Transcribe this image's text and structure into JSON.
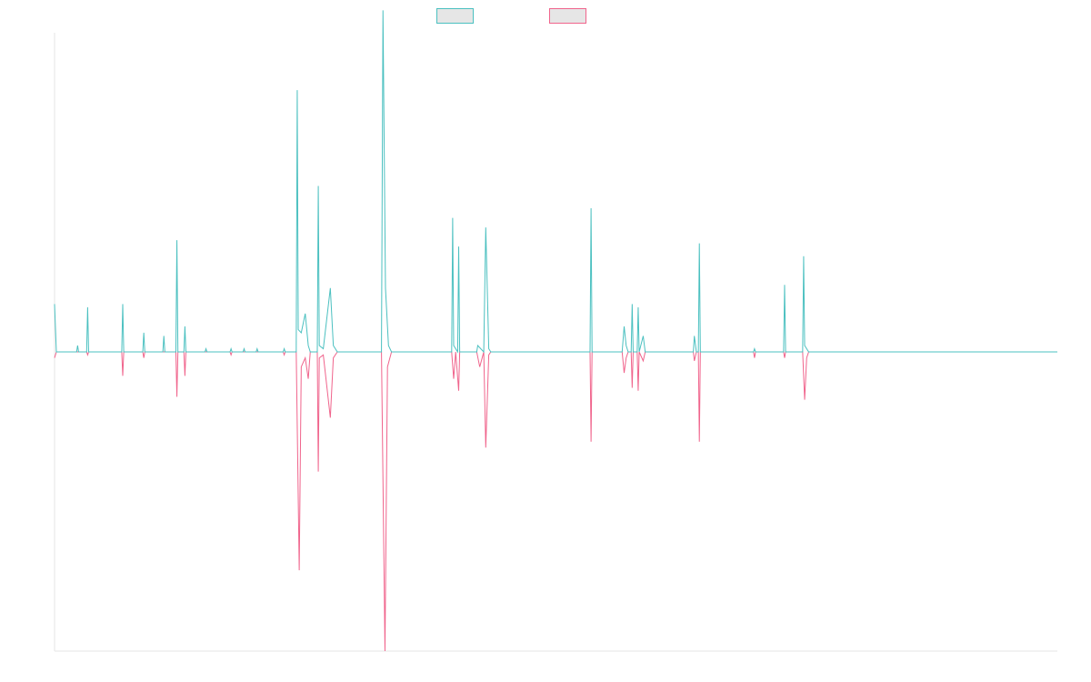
{
  "chart_data": {
    "type": "line",
    "title": "",
    "xlabel": "",
    "ylabel": "",
    "xlim": [
      0,
      100
    ],
    "ylim": [
      -1,
      1
    ],
    "legend": "top-center",
    "grid": false,
    "baseline": 0,
    "series": [
      {
        "name": "",
        "color": "#4bc0c0",
        "legend_fill": "#e6e6e6",
        "direction": "up",
        "points": [
          [
            0,
            0.15
          ],
          [
            0.18,
            0
          ],
          [
            2.2,
            0
          ],
          [
            2.3,
            0.02
          ],
          [
            2.4,
            0
          ],
          [
            3.2,
            0
          ],
          [
            3.3,
            0.14
          ],
          [
            3.4,
            0
          ],
          [
            6.7,
            0
          ],
          [
            6.8,
            0.15
          ],
          [
            6.9,
            0
          ],
          [
            8.8,
            0
          ],
          [
            8.9,
            0.06
          ],
          [
            9.0,
            0
          ],
          [
            10.8,
            0
          ],
          [
            10.9,
            0.05
          ],
          [
            11.0,
            0
          ],
          [
            12.1,
            0
          ],
          [
            12.2,
            0.35
          ],
          [
            12.3,
            0
          ],
          [
            12.9,
            0
          ],
          [
            13.0,
            0.08
          ],
          [
            13.1,
            0
          ],
          [
            15.0,
            0
          ],
          [
            15.1,
            0.01
          ],
          [
            15.2,
            0
          ],
          [
            17.5,
            0
          ],
          [
            17.6,
            0.01
          ],
          [
            17.7,
            0
          ],
          [
            18.8,
            0
          ],
          [
            18.9,
            0.01
          ],
          [
            19.0,
            0
          ],
          [
            20.1,
            0
          ],
          [
            20.2,
            0.01
          ],
          [
            20.3,
            0
          ],
          [
            22.8,
            0
          ],
          [
            22.9,
            0.01
          ],
          [
            23.0,
            0
          ],
          [
            24.1,
            0
          ],
          [
            24.2,
            0.82
          ],
          [
            24.3,
            0.07
          ],
          [
            24.6,
            0.06
          ],
          [
            25.0,
            0.12
          ],
          [
            25.3,
            0.02
          ],
          [
            25.5,
            0
          ],
          [
            26.2,
            0
          ],
          [
            26.3,
            0.52
          ],
          [
            26.4,
            0.02
          ],
          [
            26.8,
            0.01
          ],
          [
            27.5,
            0.2
          ],
          [
            27.8,
            0.02
          ],
          [
            28.2,
            0
          ],
          [
            32.6,
            0
          ],
          [
            32.75,
            1.07
          ],
          [
            33.0,
            0.2
          ],
          [
            33.3,
            0.02
          ],
          [
            33.6,
            0
          ],
          [
            39.6,
            0
          ],
          [
            39.7,
            0.42
          ],
          [
            39.8,
            0.02
          ],
          [
            40.2,
            0
          ],
          [
            40.3,
            0.33
          ],
          [
            40.4,
            0
          ],
          [
            42.1,
            0
          ],
          [
            42.2,
            0.02
          ],
          [
            42.8,
            0
          ],
          [
            43.0,
            0.39
          ],
          [
            43.3,
            0.01
          ],
          [
            43.5,
            0
          ],
          [
            53.4,
            0
          ],
          [
            53.5,
            0.45
          ],
          [
            53.6,
            0
          ],
          [
            56.6,
            0
          ],
          [
            56.8,
            0.08
          ],
          [
            57.0,
            0.02
          ],
          [
            57.2,
            0
          ],
          [
            57.5,
            0
          ],
          [
            57.6,
            0.15
          ],
          [
            57.7,
            0
          ],
          [
            58.1,
            0
          ],
          [
            58.2,
            0.14
          ],
          [
            58.3,
            0
          ],
          [
            58.7,
            0.05
          ],
          [
            58.9,
            0
          ],
          [
            63.7,
            0
          ],
          [
            63.8,
            0.05
          ],
          [
            64.0,
            0
          ],
          [
            64.2,
            0
          ],
          [
            64.3,
            0.34
          ],
          [
            64.4,
            0
          ],
          [
            65.0,
            0
          ],
          [
            69.7,
            0
          ],
          [
            69.8,
            0.01
          ],
          [
            69.9,
            0
          ],
          [
            72.7,
            0
          ],
          [
            72.8,
            0.21
          ],
          [
            72.9,
            0
          ],
          [
            74.6,
            0
          ],
          [
            74.7,
            0.3
          ],
          [
            74.8,
            0.02
          ],
          [
            75.2,
            0
          ],
          [
            100,
            0
          ]
        ]
      },
      {
        "name": "",
        "color": "#f0648c",
        "legend_fill": "#e6e6e6",
        "direction": "down",
        "points": [
          [
            0,
            0.02
          ],
          [
            0.18,
            0
          ],
          [
            3.2,
            0
          ],
          [
            3.3,
            0.01
          ],
          [
            3.4,
            0
          ],
          [
            6.7,
            0
          ],
          [
            6.8,
            0.08
          ],
          [
            6.9,
            0
          ],
          [
            8.8,
            0
          ],
          [
            8.9,
            0.02
          ],
          [
            9.0,
            0
          ],
          [
            12.1,
            0
          ],
          [
            12.2,
            0.15
          ],
          [
            12.3,
            0
          ],
          [
            12.9,
            0
          ],
          [
            13.0,
            0.08
          ],
          [
            13.1,
            0
          ],
          [
            17.5,
            0
          ],
          [
            17.6,
            0.01
          ],
          [
            17.7,
            0
          ],
          [
            22.8,
            0
          ],
          [
            22.9,
            0.01
          ],
          [
            23.0,
            0
          ],
          [
            24.1,
            0
          ],
          [
            24.4,
            0.73
          ],
          [
            24.6,
            0.05
          ],
          [
            25.0,
            0.02
          ],
          [
            25.3,
            0.09
          ],
          [
            25.5,
            0
          ],
          [
            26.2,
            0
          ],
          [
            26.3,
            0.4
          ],
          [
            26.4,
            0.02
          ],
          [
            26.8,
            0.01
          ],
          [
            27.5,
            0.22
          ],
          [
            27.8,
            0.02
          ],
          [
            28.2,
            0
          ],
          [
            32.6,
            0
          ],
          [
            32.95,
            1.0
          ],
          [
            33.2,
            0.05
          ],
          [
            33.6,
            0
          ],
          [
            39.6,
            0
          ],
          [
            39.8,
            0.09
          ],
          [
            40.0,
            0
          ],
          [
            40.3,
            0.13
          ],
          [
            40.4,
            0
          ],
          [
            42.1,
            0
          ],
          [
            42.4,
            0.05
          ],
          [
            42.8,
            0
          ],
          [
            43.0,
            0.32
          ],
          [
            43.3,
            0.01
          ],
          [
            43.5,
            0
          ],
          [
            53.4,
            0
          ],
          [
            53.5,
            0.3
          ],
          [
            53.6,
            0
          ],
          [
            56.6,
            0
          ],
          [
            56.8,
            0.07
          ],
          [
            57.0,
            0.02
          ],
          [
            57.2,
            0
          ],
          [
            57.5,
            0
          ],
          [
            57.6,
            0.12
          ],
          [
            57.7,
            0
          ],
          [
            58.1,
            0
          ],
          [
            58.2,
            0.13
          ],
          [
            58.3,
            0
          ],
          [
            58.7,
            0.03
          ],
          [
            58.9,
            0
          ],
          [
            63.7,
            0
          ],
          [
            63.8,
            0.03
          ],
          [
            64.0,
            0
          ],
          [
            64.2,
            0
          ],
          [
            64.3,
            0.3
          ],
          [
            64.4,
            0
          ],
          [
            65.0,
            0
          ],
          [
            69.7,
            0
          ],
          [
            69.8,
            0.02
          ],
          [
            69.9,
            0
          ],
          [
            72.7,
            0
          ],
          [
            72.8,
            0.02
          ],
          [
            72.9,
            0
          ],
          [
            74.6,
            0
          ],
          [
            74.8,
            0.16
          ],
          [
            75.0,
            0.02
          ],
          [
            75.2,
            0
          ],
          [
            100,
            0
          ]
        ]
      }
    ]
  }
}
